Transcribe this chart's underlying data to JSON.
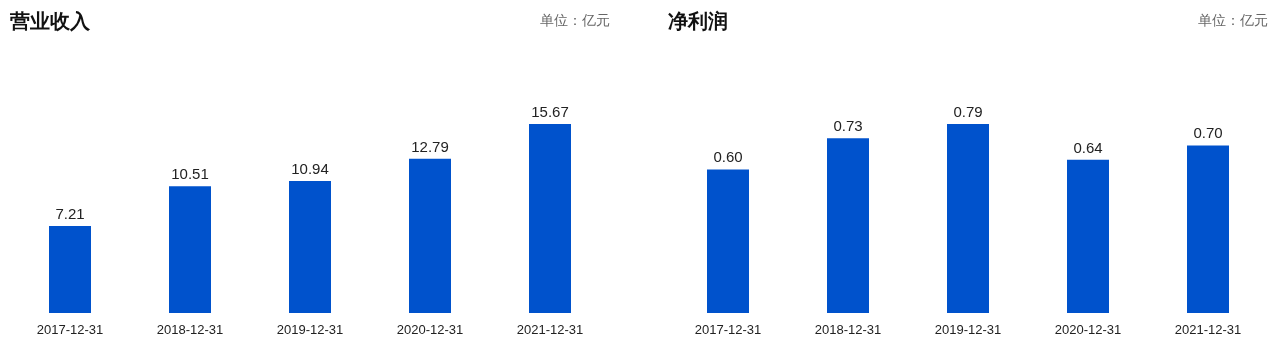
{
  "chart_data": [
    {
      "type": "bar",
      "title": "营业收入",
      "annotations": [
        "单位：亿元"
      ],
      "categories": [
        "2017-12-31",
        "2018-12-31",
        "2019-12-31",
        "2020-12-31",
        "2021-12-31"
      ],
      "values": [
        7.21,
        10.51,
        10.94,
        12.79,
        15.67
      ],
      "color": "#0052cc",
      "data_labels": true
    },
    {
      "type": "bar",
      "title": "净利润",
      "annotations": [
        "单位：亿元"
      ],
      "categories": [
        "2017-12-31",
        "2018-12-31",
        "2019-12-31",
        "2020-12-31",
        "2021-12-31"
      ],
      "values": [
        0.6,
        0.73,
        0.79,
        0.64,
        0.7
      ],
      "value_labels": [
        "0.60",
        "0.73",
        "0.79",
        "0.64",
        "0.70"
      ],
      "color": "#0052cc"
    }
  ]
}
